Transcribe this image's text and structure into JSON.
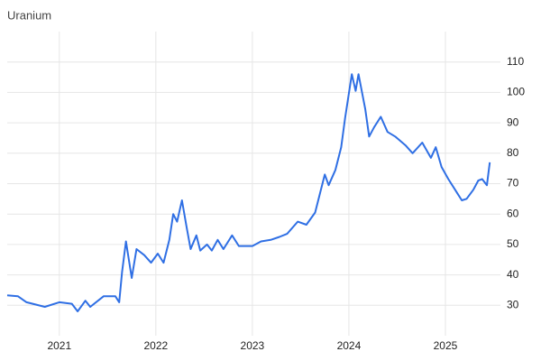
{
  "chart_data": {
    "type": "line",
    "title": "Uranium",
    "x": [
      2020.46,
      2020.57,
      2020.66,
      2020.85,
      2021.0,
      2021.13,
      2021.19,
      2021.27,
      2021.32,
      2021.46,
      2021.58,
      2021.62,
      2021.65,
      2021.69,
      2021.75,
      2021.8,
      2021.88,
      2021.95,
      2022.02,
      2022.08,
      2022.14,
      2022.18,
      2022.22,
      2022.27,
      2022.32,
      2022.36,
      2022.42,
      2022.46,
      2022.53,
      2022.58,
      2022.64,
      2022.7,
      2022.79,
      2022.86,
      2023.0,
      2023.09,
      2023.19,
      2023.28,
      2023.36,
      2023.47,
      2023.56,
      2023.65,
      2023.75,
      2023.79,
      2023.86,
      2023.92,
      2023.96,
      2024.03,
      2024.07,
      2024.1,
      2024.17,
      2024.21,
      2024.26,
      2024.33,
      2024.4,
      2024.48,
      2024.59,
      2024.66,
      2024.76,
      2024.85,
      2024.9,
      2024.96,
      2025.03,
      2025.1,
      2025.17,
      2025.22,
      2025.29,
      2025.34,
      2025.38,
      2025.43,
      2025.46
    ],
    "series": [
      {
        "name": "Uranium",
        "color": "#2f6fe4",
        "values": [
          33.3,
          33,
          31,
          29.5,
          31,
          30.5,
          28,
          31.5,
          29.5,
          33,
          33,
          31,
          41,
          51,
          39,
          48.5,
          46.5,
          44,
          47,
          44,
          51.5,
          60,
          57.5,
          64.5,
          55.5,
          48.5,
          53,
          48,
          50,
          48,
          51.5,
          48.5,
          53,
          49.5,
          49.5,
          51,
          51.5,
          52.5,
          53.5,
          57.5,
          56.5,
          60.5,
          73,
          69.5,
          74.5,
          82,
          91.5,
          106,
          100.5,
          106,
          94.5,
          85.5,
          88.5,
          92,
          87,
          85.5,
          82.5,
          80,
          83.5,
          78.5,
          82,
          75.5,
          71.5,
          68,
          64.5,
          65,
          68,
          71,
          71.5,
          69.5,
          77
        ]
      }
    ],
    "xlim": [
      2020.46,
      2025.57
    ],
    "xticks": [
      2021,
      2022,
      2023,
      2024,
      2025
    ],
    "ylim": [
      20,
      120
    ],
    "yticks": [
      30,
      40,
      50,
      60,
      70,
      80,
      90,
      100,
      110
    ],
    "grid": true
  }
}
